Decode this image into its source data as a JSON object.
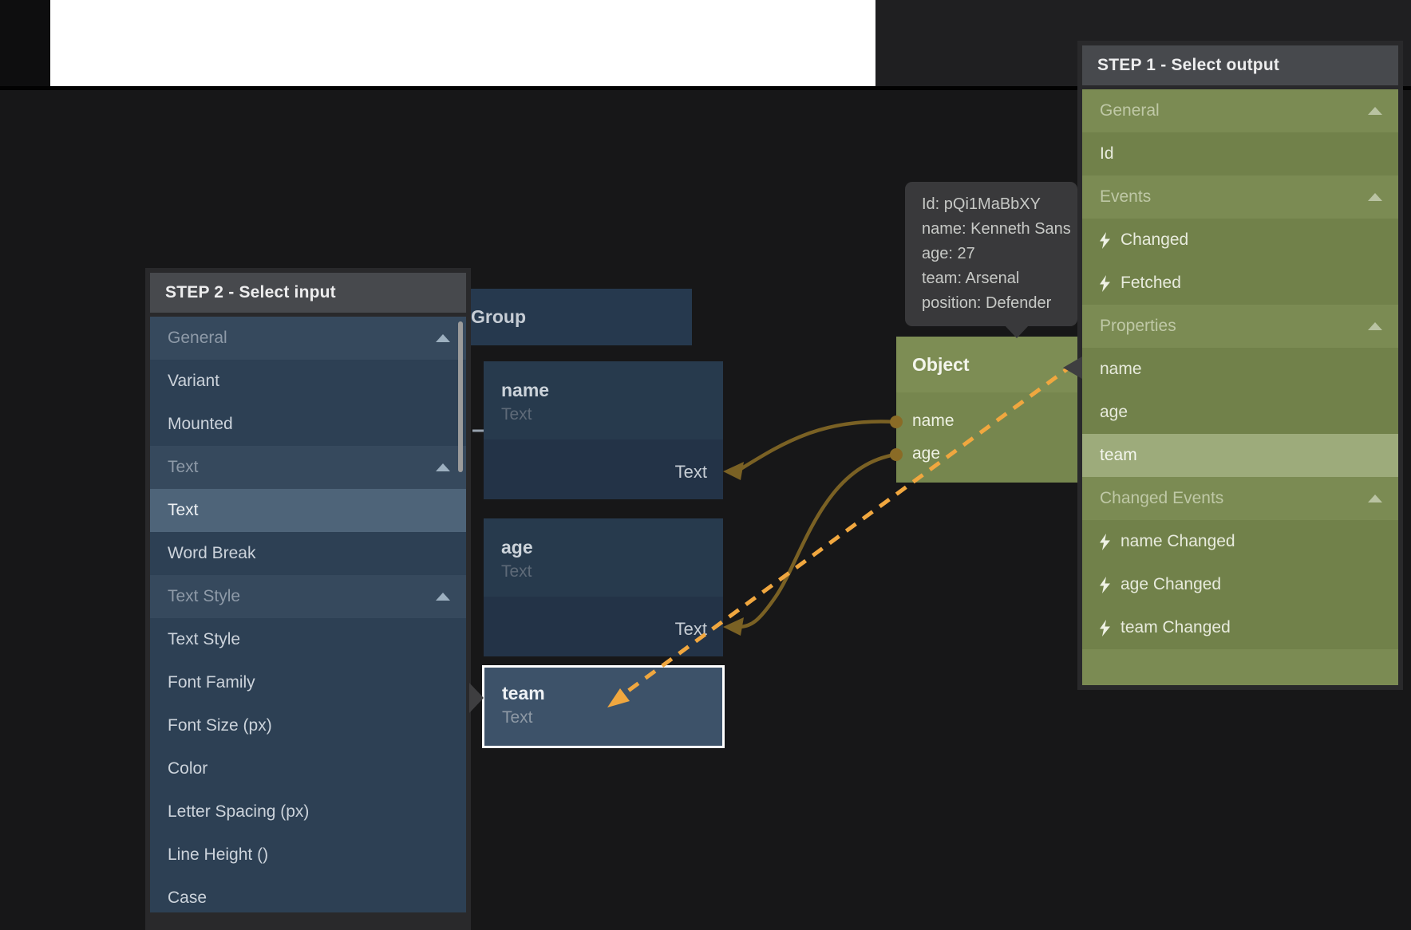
{
  "step1": {
    "title": "STEP 1 - Select output",
    "items": [
      {
        "label": "General",
        "type": "section"
      },
      {
        "label": "Id",
        "type": "item"
      },
      {
        "label": "Events",
        "type": "section"
      },
      {
        "label": "Changed",
        "type": "event"
      },
      {
        "label": "Fetched",
        "type": "event"
      },
      {
        "label": "Properties",
        "type": "section"
      },
      {
        "label": "name",
        "type": "item"
      },
      {
        "label": "age",
        "type": "item"
      },
      {
        "label": "team",
        "type": "item",
        "selected": true
      },
      {
        "label": "Changed Events",
        "type": "section"
      },
      {
        "label": "name Changed",
        "type": "event"
      },
      {
        "label": "age Changed",
        "type": "event"
      },
      {
        "label": "team Changed",
        "type": "event"
      }
    ]
  },
  "step2": {
    "title": "STEP 2 - Select input",
    "items": [
      {
        "label": "General",
        "type": "section"
      },
      {
        "label": "Variant",
        "type": "item"
      },
      {
        "label": "Mounted",
        "type": "item"
      },
      {
        "label": "Text",
        "type": "section"
      },
      {
        "label": "Text",
        "type": "item",
        "selected": true
      },
      {
        "label": "Word Break",
        "type": "item"
      },
      {
        "label": "Text Style",
        "type": "section"
      },
      {
        "label": "Text Style",
        "type": "item"
      },
      {
        "label": "Font Family",
        "type": "item"
      },
      {
        "label": "Font Size (px)",
        "type": "item"
      },
      {
        "label": "Color",
        "type": "item"
      },
      {
        "label": "Letter Spacing (px)",
        "type": "item"
      },
      {
        "label": "Line Height ()",
        "type": "item"
      },
      {
        "label": "Case",
        "type": "item"
      }
    ]
  },
  "nodes": {
    "group": {
      "title": "Group"
    },
    "name_text": {
      "title": "name",
      "subtitle": "Text",
      "output_label": "Text"
    },
    "age_text": {
      "title": "age",
      "subtitle": "Text",
      "output_label": "Text"
    },
    "team_text": {
      "title": "team",
      "subtitle": "Text"
    },
    "object": {
      "title": "Object",
      "ports": {
        "0": "name",
        "1": "age"
      }
    }
  },
  "tooltip": {
    "lines": {
      "0": "Id: pQi1MaBbXY",
      "1": "name: Kenneth Sans",
      "2": "age: 27",
      "3": "team: Arsenal",
      "4": "position: Defender"
    }
  },
  "icons": {
    "section_header": "chevron-up-icon",
    "event_item": "lightning-icon"
  },
  "colors": {
    "canvas": "#171718",
    "step1_list": "#7b8b53",
    "step1_item": "#71814a",
    "step1_selected": "#9dab7b",
    "step2_list": "#36495d",
    "step2_item": "#2d4054",
    "step2_selected": "#4e6479",
    "panel_title_bg": "#47494d",
    "node_blue": "#273a4d",
    "node_blue_selected": "#3d5269",
    "node_green": "#76864e",
    "wire_solid": "#7a6124",
    "wire_dashed": "#f0a73f",
    "tooltip_bg": "#39393b"
  }
}
